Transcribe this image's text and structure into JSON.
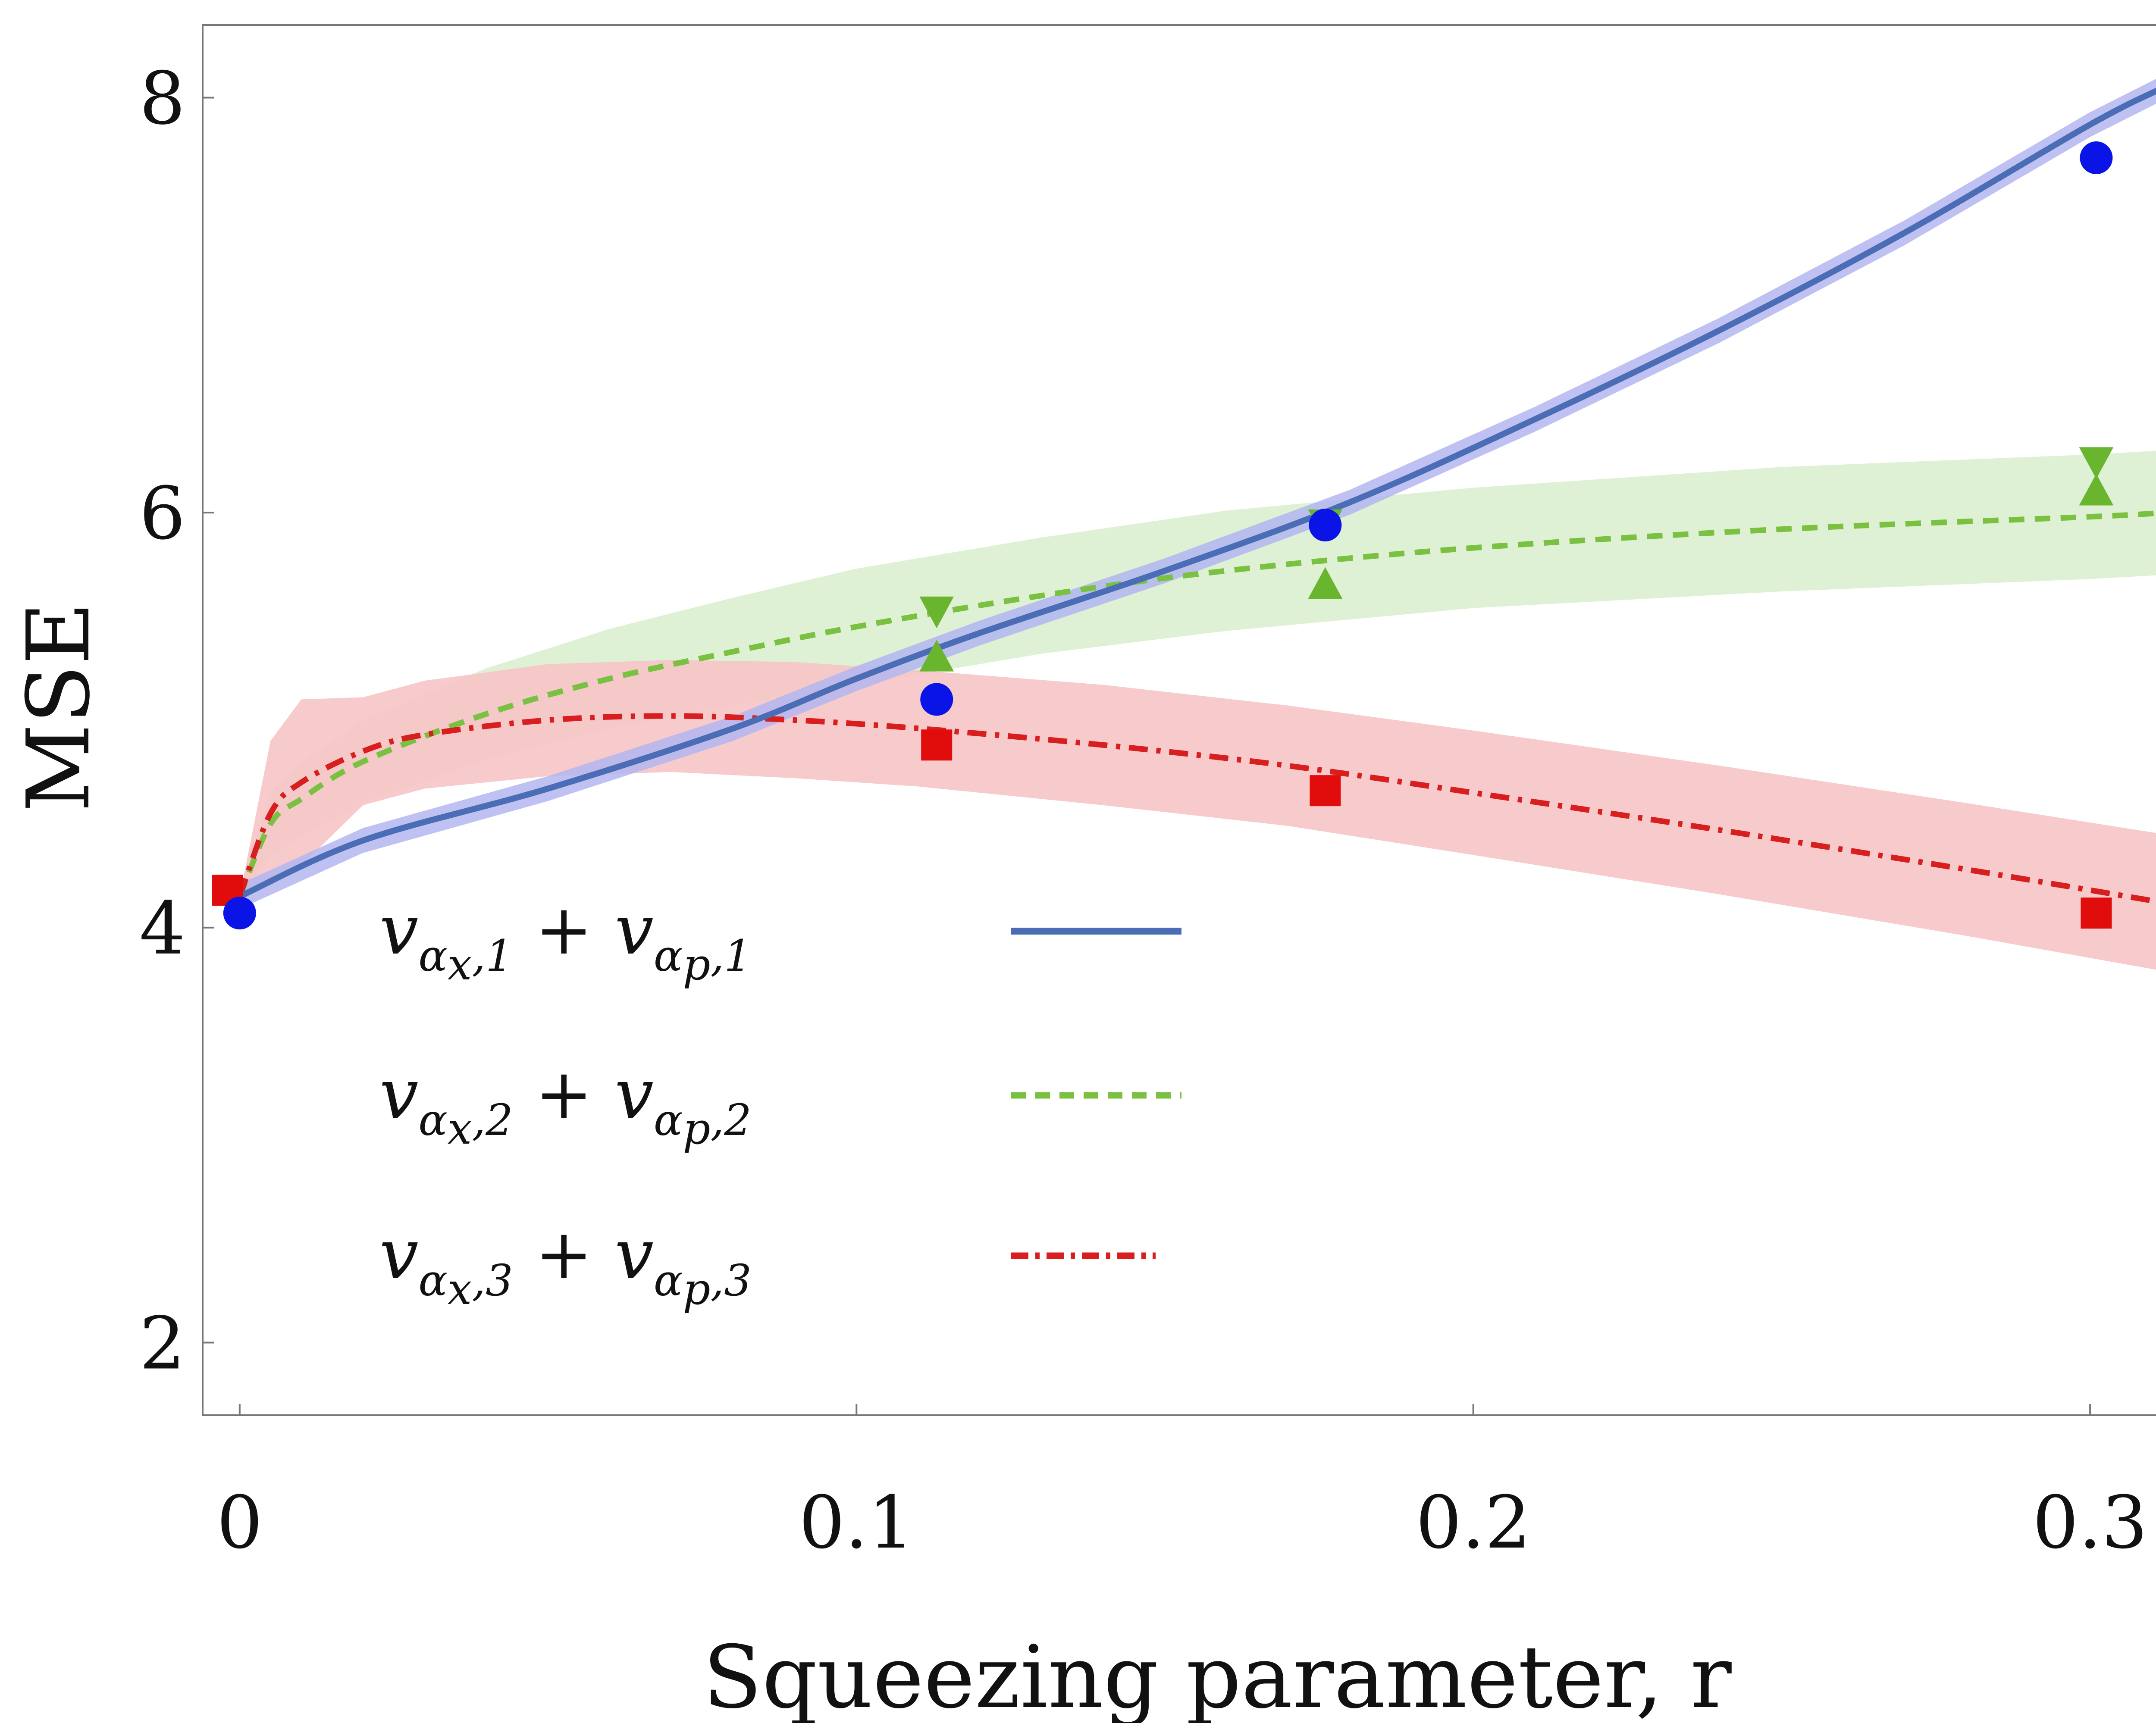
{
  "chart_data": {
    "type": "line",
    "title": "",
    "xlabel": "Squeezing parameter, r",
    "ylabel": "MSE",
    "xlim": [
      -0.006,
      0.316
    ],
    "ylim": [
      1.65,
      8.35
    ],
    "xticks": [
      0,
      0.1,
      0.2,
      0.3
    ],
    "yticks": [
      2,
      4,
      6,
      8
    ],
    "xtick_labels": [
      "0",
      "0.1",
      "0.2",
      "0.3"
    ],
    "ytick_labels": [
      "2",
      "4",
      "6",
      "8"
    ],
    "grid": false,
    "legend_position": "bottom-left",
    "colors": {
      "series1": "#4a6db5",
      "series1_band": "#b3b6f0",
      "series1_markers": "#0a14e6",
      "series2": "#7ac142",
      "series2_band": "#dcefcf",
      "series2_markers": "#6ab52e",
      "series3": "#d81e1e",
      "series3_band": "#f6c4c6",
      "series3_markers": "#e10d0d"
    },
    "series": [
      {
        "name": "v_{αx,1} + v_{αp,1}",
        "legend_label": {
          "main": "v",
          "sub1": "α",
          "subsub1": "x",
          "sub2": ",1",
          "plus": "+",
          "sub3": "α",
          "subsub3": "p",
          "sub4": ",1"
        },
        "line_style": "solid",
        "curve": {
          "x": [
            0,
            0.02,
            0.05,
            0.08,
            0.1,
            0.12,
            0.15,
            0.18,
            0.21,
            0.24,
            0.27,
            0.3,
            0.312
          ],
          "y": [
            4.15,
            4.42,
            4.67,
            4.96,
            5.2,
            5.42,
            5.72,
            6.05,
            6.45,
            6.88,
            7.35,
            7.87,
            8.05
          ]
        },
        "band_half_width": 0.06,
        "points": {
          "x": [
            0,
            0.113,
            0.176,
            0.301
          ],
          "y": [
            4.07,
            5.1,
            5.94,
            7.71
          ],
          "marker": "circle"
        }
      },
      {
        "name": "v_{αx,2} + v_{αp,2}",
        "legend_label": {
          "main": "v",
          "sub1": "α",
          "subsub1": "x",
          "sub2": ",2",
          "plus": "+",
          "sub3": "α",
          "subsub3": "p",
          "sub4": ",2"
        },
        "line_style": "dashed",
        "curve": {
          "x": [
            0,
            0.005,
            0.01,
            0.02,
            0.04,
            0.06,
            0.08,
            0.1,
            0.13,
            0.16,
            0.2,
            0.25,
            0.3,
            0.312
          ],
          "y": [
            4.15,
            4.5,
            4.62,
            4.8,
            5.03,
            5.2,
            5.33,
            5.45,
            5.6,
            5.72,
            5.83,
            5.92,
            5.98,
            6.0
          ]
        },
        "band_half_width": [
          0.0,
          0.15,
          0.18,
          0.2,
          0.22,
          0.24,
          0.26,
          0.28,
          0.28,
          0.29,
          0.29,
          0.3,
          0.3,
          0.3
        ],
        "points_up": {
          "x": [
            0.113,
            0.176,
            0.301
          ],
          "y": [
            5.3,
            5.65,
            6.1
          ],
          "marker": "triangle-up"
        },
        "points_down": {
          "x": [
            0.113,
            0.176,
            0.301
          ],
          "y": [
            5.53,
            5.95,
            6.25
          ],
          "marker": "triangle-down"
        }
      },
      {
        "name": "v_{αx,3} + v_{αp,3}",
        "legend_label": {
          "main": "v",
          "sub1": "α",
          "subsub1": "x",
          "sub2": ",3",
          "plus": "+",
          "sub3": "α",
          "subsub3": "p",
          "sub4": ",3"
        },
        "line_style": "dashdot",
        "curve": {
          "x": [
            0,
            0.005,
            0.01,
            0.02,
            0.03,
            0.05,
            0.07,
            0.09,
            0.11,
            0.14,
            0.17,
            0.2,
            0.24,
            0.28,
            0.312
          ],
          "y": [
            4.15,
            4.55,
            4.7,
            4.85,
            4.93,
            5.0,
            5.02,
            5.0,
            4.96,
            4.88,
            4.78,
            4.65,
            4.47,
            4.28,
            4.12
          ]
        },
        "band_half_width": [
          0.0,
          0.35,
          0.4,
          0.26,
          0.26,
          0.27,
          0.27,
          0.28,
          0.28,
          0.29,
          0.29,
          0.3,
          0.31,
          0.32,
          0.33
        ],
        "points": {
          "x": [
            -0.002,
            0.113,
            0.176,
            0.301
          ],
          "y": [
            4.18,
            4.88,
            4.66,
            4.07
          ],
          "marker": "square"
        }
      }
    ]
  }
}
